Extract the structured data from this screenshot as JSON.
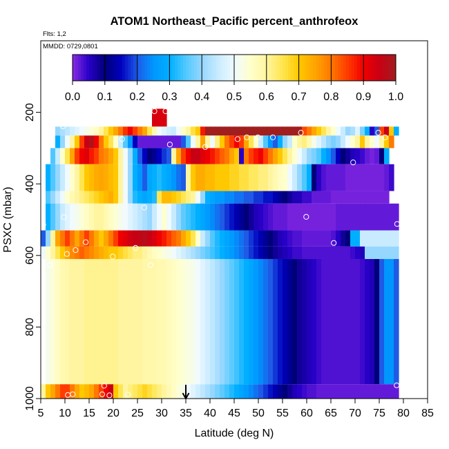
{
  "chart_data": {
    "type": "heatmap",
    "title": "ATOM1 Northeast_Pacific percent_anthrofeox",
    "flights_label": "Flts: 1,2",
    "dates_label": "MMDD: 0729,0801",
    "xlabel": "Latitude (deg N)",
    "ylabel": "PSXC (mbar)",
    "xlim": [
      5,
      85
    ],
    "ylim": [
      1000,
      0
    ],
    "x_ticks": [
      "5",
      "10",
      "15",
      "20",
      "25",
      "30",
      "35",
      "40",
      "45",
      "50",
      "55",
      "60",
      "65",
      "70",
      "75",
      "80",
      "85"
    ],
    "y_ticks": [
      "200",
      "400",
      "600",
      "800",
      "1000"
    ],
    "colorbar": {
      "range": [
        0.0,
        1.0
      ],
      "tick_labels": [
        "0.0",
        "0.1",
        "0.2",
        "0.3",
        "0.4",
        "0.5",
        "0.6",
        "0.7",
        "0.8",
        "0.9",
        "1.0"
      ]
    },
    "marker_latitude": 35,
    "cell_width_deg": 1,
    "layers": [
      {
        "p_top": 190,
        "p_bot": 240,
        "segments": [
          [
            28,
            31,
            [
              0.93
            ]
          ]
        ]
      },
      {
        "p_top": 240,
        "p_bot": 265,
        "segments": [
          [
            8,
            39,
            [
              0.4,
              0.42,
              0.44,
              0.46,
              0.48,
              0.5,
              0.52,
              0.54,
              0.56,
              0.6,
              0.65,
              0.7,
              0.75,
              0.8,
              0.86,
              0.9,
              0.85,
              0.8,
              0.75,
              0.65,
              0.58,
              0.5,
              0.48,
              0.46,
              0.45,
              0.5,
              0.56,
              0.6,
              0.66,
              0.7,
              0.88
            ]
          ],
          [
            39,
            59,
            [
              1.0
            ]
          ],
          [
            59,
            79,
            [
              0.84,
              0.8,
              0.75,
              0.7,
              0.65,
              0.6,
              0.55,
              0.5,
              0.45,
              0.4,
              0.42,
              0.48,
              0.38,
              0.3,
              0.05,
              0.2,
              0.85,
              0.95,
              0.7,
              0.3
            ]
          ]
        ]
      },
      {
        "p_top": 265,
        "p_bot": 300,
        "segments": [
          [
            8,
            78,
            [
              0.3,
              0.4,
              0.5,
              0.6,
              0.7,
              0.85,
              0.95,
              0.98,
              0.9,
              0.8,
              0.7,
              0.65,
              0.55,
              0.45,
              0.35,
              0.25,
              0.15,
              0.02,
              0.02,
              0.02,
              0.02,
              0.02,
              0.02,
              0.02,
              0.02,
              0.02,
              0.2,
              0.35,
              0.5,
              0.6,
              0.75,
              0.6,
              0.5,
              0.62,
              0.7,
              0.8,
              0.85,
              0.9,
              0.85,
              0.75,
              0.65,
              0.55,
              0.45,
              0.35,
              0.25,
              0.2,
              0.3,
              0.4,
              0.45,
              0.55,
              0.6,
              0.62,
              0.58,
              0.52,
              0.48,
              0.44,
              0.4,
              0.38,
              0.4,
              0.45,
              0.5,
              0.55,
              0.6,
              0.7,
              0.6,
              0.55,
              0.5,
              0.6,
              0.7,
              0.8
            ]
          ]
        ]
      },
      {
        "p_top": 300,
        "p_bot": 345,
        "segments": [
          [
            7,
            77,
            [
              0.35,
              0.45,
              0.55,
              0.65,
              0.75,
              0.85,
              0.9,
              0.92,
              0.88,
              0.85,
              0.8,
              0.78,
              0.75,
              0.7,
              0.6,
              0.5,
              0.4,
              0.3,
              0.2,
              0.15,
              0.1,
              0.12,
              0.15,
              0.18,
              0.2,
              0.6,
              0.75,
              0.85,
              0.9,
              0.95,
              0.95,
              0.92,
              0.9,
              0.88,
              0.85,
              0.82,
              0.8,
              0.75,
              0.7,
              0.05,
              0.8,
              0.85,
              0.88,
              0.9,
              0.85,
              0.8,
              0.75,
              0.7,
              0.65,
              0.6,
              0.55,
              0.5,
              0.45,
              0.4,
              0.38,
              0.35,
              0.3,
              0.25,
              0.2,
              0.15,
              0.1,
              0.08,
              0.06,
              0.05,
              0.04,
              0.02,
              0.01,
              0.02,
              0.1,
              0.3
            ]
          ]
        ]
      },
      {
        "p_top": 345,
        "p_bot": 420,
        "segments": [
          [
            6,
            78,
            [
              0.3,
              0.35,
              0.4,
              0.45,
              0.5,
              0.55,
              0.6,
              0.65,
              0.7,
              0.72,
              0.74,
              0.75,
              0.74,
              0.72,
              0.7,
              0.6,
              0.5,
              0.4,
              0.3,
              0.25,
              0.2,
              0.28,
              0.3,
              0.32,
              0.3,
              0.28,
              0.25,
              0.22,
              0.2,
              0.6,
              0.7,
              0.74,
              0.74,
              0.72,
              0.72,
              0.7,
              0.7,
              0.7,
              0.68,
              0.68,
              0.66,
              0.66,
              0.64,
              0.64,
              0.62,
              0.62,
              0.6,
              0.58,
              0.56,
              0.55,
              0.5,
              0.45,
              0.4,
              0.35,
              0.3,
              0.1,
              0.05,
              0.03,
              0.02,
              0.02,
              0.02,
              0.02,
              0.01,
              0.01,
              0.01,
              0.01,
              0.01,
              0.01,
              0.01,
              0.01,
              0.02,
              0.04
            ]
          ]
        ]
      },
      {
        "p_top": 420,
        "p_bot": 455,
        "segments": [
          [
            6,
            77,
            [
              0.35,
              0.4,
              0.45,
              0.5,
              0.55,
              0.58,
              0.6,
              0.62,
              0.64,
              0.66,
              0.68,
              0.7,
              0.72,
              0.74,
              0.7,
              0.6,
              0.5,
              0.4,
              0.32,
              0.3,
              0.28,
              0.3,
              0.32,
              0.65,
              0.72,
              0.72,
              0.7,
              0.68,
              0.65,
              0.62,
              0.6,
              0.5,
              0.4,
              0.3,
              0.28,
              0.26,
              0.26,
              0.24,
              0.24,
              0.22,
              0.22,
              0.2,
              0.2,
              0.18,
              0.18,
              0.16,
              0.16,
              0.14,
              0.12,
              0.1,
              0.08,
              0.06,
              0.06,
              0.04,
              0.04,
              0.02,
              0.02,
              0.02,
              0.02,
              0.01,
              0.01,
              0.01,
              0.01,
              0.01,
              0.01,
              0.01,
              0.01,
              0.01,
              0.01,
              0.01,
              0.01
            ]
          ]
        ]
      },
      {
        "p_top": 455,
        "p_bot": 530,
        "segments": [
          [
            6,
            66,
            [
              0.3,
              0.35,
              0.4,
              0.45,
              0.48,
              0.5,
              0.52,
              0.54,
              0.56,
              0.58,
              0.6,
              0.6,
              0.58,
              0.56,
              0.54,
              0.52,
              0.5,
              0.48,
              0.46,
              0.44,
              0.42,
              0.4,
              0.45,
              0.5,
              0.55,
              0.5,
              0.45,
              0.4,
              0.36,
              0.34,
              0.32,
              0.3,
              0.28,
              0.26,
              0.24,
              0.22,
              0.2,
              0.18,
              0.16,
              0.14,
              0.12,
              0.1,
              0.08,
              0.06,
              0.05,
              0.04,
              0.03,
              0.02,
              0.02,
              0.02,
              0.01,
              0.01,
              0.01,
              0.01,
              0.01,
              0.01,
              0.01,
              0.01,
              0.01,
              0.01
            ]
          ],
          [
            66,
            79,
            [
              0.02
            ]
          ]
        ]
      },
      {
        "p_top": 530,
        "p_bot": 575,
        "segments": [
          [
            5,
            69,
            [
              0.2,
              0.4,
              0.6,
              0.75,
              0.8,
              0.85,
              0.8,
              0.75,
              0.8,
              0.85,
              0.8,
              0.75,
              0.7,
              0.75,
              0.8,
              0.85,
              0.9,
              0.92,
              0.94,
              0.95,
              0.96,
              0.97,
              0.95,
              0.93,
              0.9,
              0.88,
              0.85,
              0.82,
              0.8,
              0.75,
              0.7,
              0.65,
              0.55,
              0.45,
              0.4,
              0.35,
              0.32,
              0.3,
              0.28,
              0.26,
              0.24,
              0.22,
              0.2,
              0.18,
              0.16,
              0.14,
              0.12,
              0.1,
              0.08,
              0.06,
              0.05,
              0.04,
              0.03,
              0.03,
              0.02,
              0.02,
              0.02,
              0.02,
              0.02,
              0.02,
              0.03,
              0.05,
              0.08,
              0.1
            ]
          ],
          [
            69,
            71,
            [
              0.3
            ]
          ],
          [
            71,
            79,
            [
              0.45
            ]
          ]
        ]
      },
      {
        "p_top": 575,
        "p_bot": 610,
        "segments": [
          [
            5,
            72,
            [
              0.5,
              0.55,
              0.6,
              0.65,
              0.7,
              0.75,
              0.78,
              0.8,
              0.82,
              0.8,
              0.78,
              0.76,
              0.74,
              0.72,
              0.7,
              0.7,
              0.68,
              0.66,
              0.64,
              0.62,
              0.62,
              0.6,
              0.58,
              0.56,
              0.55,
              0.53,
              0.52,
              0.5,
              0.48,
              0.46,
              0.44,
              0.42,
              0.4,
              0.38,
              0.36,
              0.34,
              0.32,
              0.3,
              0.28,
              0.26,
              0.24,
              0.22,
              0.2,
              0.18,
              0.16,
              0.14,
              0.12,
              0.1,
              0.08,
              0.07,
              0.06,
              0.05,
              0.04,
              0.04,
              0.03,
              0.03,
              0.03,
              0.03,
              0.03,
              0.03,
              0.03,
              0.03,
              0.03,
              0.03,
              0.04,
              0.05,
              0.06
            ]
          ],
          [
            72,
            79,
            [
              0.4
            ]
          ]
        ]
      },
      {
        "p_top": 610,
        "p_bot": 960,
        "segments": [
          [
            6,
            79,
            [
              0.52,
              0.54,
              0.56,
              0.58,
              0.59,
              0.6,
              0.6,
              0.6,
              0.61,
              0.61,
              0.61,
              0.61,
              0.61,
              0.61,
              0.61,
              0.6,
              0.6,
              0.6,
              0.6,
              0.6,
              0.59,
              0.59,
              0.59,
              0.58,
              0.58,
              0.57,
              0.56,
              0.55,
              0.54,
              0.53,
              0.52,
              0.5,
              0.48,
              0.46,
              0.44,
              0.42,
              0.4,
              0.38,
              0.36,
              0.34,
              0.32,
              0.3,
              0.28,
              0.26,
              0.24,
              0.22,
              0.2,
              0.18,
              0.16,
              0.14,
              0.12,
              0.1,
              0.08,
              0.07,
              0.06,
              0.05,
              0.04,
              0.03,
              0.03,
              0.03,
              0.03,
              0.03,
              0.03,
              0.03,
              0.03,
              0.04,
              0.05,
              0.06,
              0.1,
              0.2,
              0.25,
              0.25,
              0.2
            ]
          ]
        ]
      },
      {
        "p_top": 960,
        "p_bot": 1000,
        "segments": [
          [
            5,
            79,
            [
              0.6,
              0.7,
              0.75,
              0.8,
              0.85,
              0.85,
              0.8,
              0.75,
              0.7,
              0.72,
              0.75,
              0.8,
              0.85,
              0.9,
              0.95,
              0.7,
              0.65,
              0.6,
              0.62,
              0.64,
              0.66,
              0.68,
              0.66,
              0.64,
              0.62,
              0.6,
              0.58,
              0.56,
              0.54,
              0.52,
              0.5,
              0.48,
              0.46,
              0.44,
              0.42,
              0.4,
              0.38,
              0.36,
              0.34,
              0.32,
              0.3,
              0.28,
              0.26,
              0.24,
              0.22,
              0.2,
              0.18,
              0.16,
              0.14,
              0.12,
              0.1,
              0.08,
              0.06,
              0.05,
              0.04,
              0.03,
              0.03,
              0.02,
              0.02,
              0.02,
              0.02,
              0.02,
              0.02,
              0.02,
              0.02,
              0.02,
              0.02,
              0.02,
              0.02,
              0.02,
              0.02,
              0.02,
              0.02,
              0.02
            ]
          ]
        ]
      }
    ],
    "sample_points": [
      [
        28.5,
        197
      ],
      [
        30.8,
        197
      ],
      [
        21.2,
        217
      ],
      [
        9.6,
        239
      ],
      [
        58.8,
        257
      ],
      [
        74.8,
        257
      ],
      [
        21.8,
        275
      ],
      [
        45.7,
        275
      ],
      [
        47.6,
        270
      ],
      [
        49.9,
        270
      ],
      [
        53.0,
        270
      ],
      [
        76.2,
        270
      ],
      [
        39.0,
        297
      ],
      [
        31.7,
        290
      ],
      [
        69.6,
        340
      ],
      [
        5.5,
        514
      ],
      [
        9.8,
        493
      ],
      [
        26.4,
        466
      ],
      [
        59.9,
        492
      ],
      [
        78.7,
        512
      ],
      [
        65.6,
        565
      ],
      [
        10.4,
        596
      ],
      [
        12.2,
        585
      ],
      [
        14.3,
        563
      ],
      [
        19.9,
        603
      ],
      [
        24.6,
        579
      ],
      [
        27.7,
        627
      ],
      [
        6.9,
        627
      ],
      [
        10.6,
        990
      ],
      [
        11.6,
        988
      ],
      [
        17.7,
        988
      ],
      [
        18.1,
        964
      ],
      [
        19.2,
        991
      ],
      [
        23.0,
        989
      ],
      [
        78.6,
        963
      ]
    ]
  }
}
